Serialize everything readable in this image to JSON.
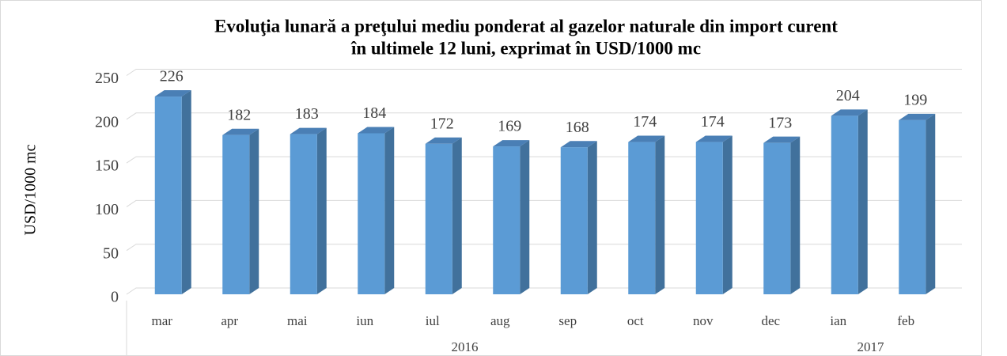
{
  "chart_data": {
    "type": "bar3d",
    "title": "Evoluţia lunară a preţului mediu ponderat al gazelor naturale din import curent",
    "subtitle": "în ultimele 12 luni, exprimat în USD/1000 mc",
    "y_label": "USD/1000 mc",
    "categories": [
      "mar",
      "apr",
      "mai",
      "iun",
      "iul",
      "aug",
      "sep",
      "oct",
      "nov",
      "dec",
      "ian",
      "feb"
    ],
    "x_groups": [
      {
        "label": "2016",
        "count": 10
      },
      {
        "label": "2017",
        "count": 2
      }
    ],
    "values": [
      226,
      182,
      183,
      184,
      172,
      169,
      168,
      174,
      174,
      173,
      204,
      199
    ],
    "color": "#5b9bd5",
    "ylim": [
      0,
      250
    ],
    "yticks": [
      0,
      50,
      100,
      150,
      200,
      250
    ],
    "grid": true
  }
}
